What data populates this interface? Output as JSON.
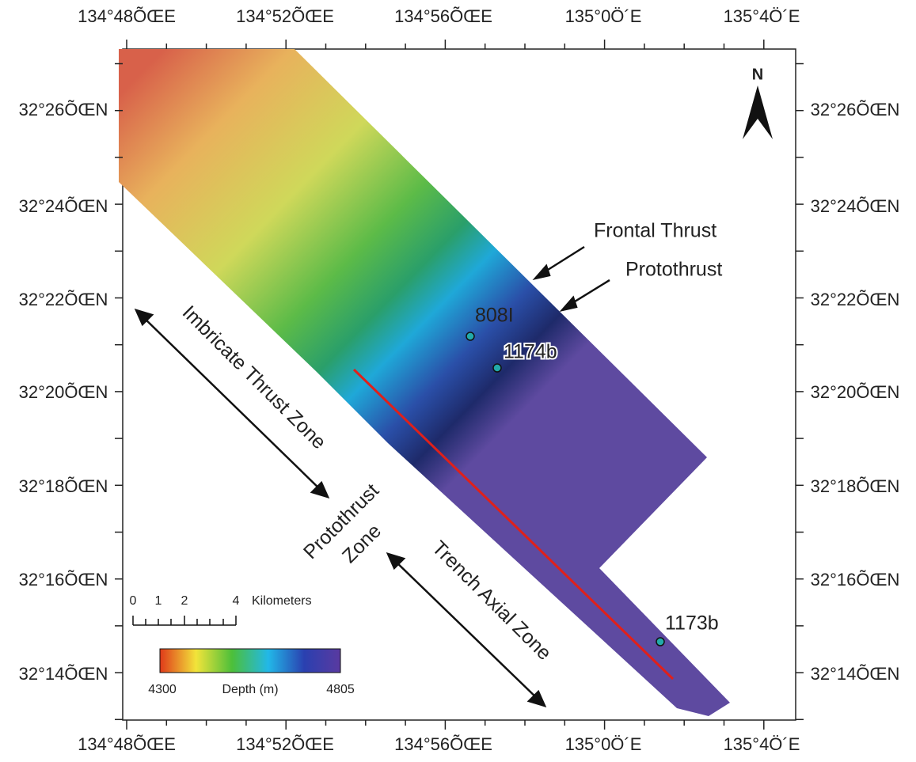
{
  "longitude_labels": [
    "134°48ÕŒE",
    "134°52ÕŒE",
    "134°56ÕŒE",
    "135°0Ö´E",
    "135°4Ö´E"
  ],
  "latitude_labels": [
    "32°26ÕŒN",
    "32°24ÕŒN",
    "32°22ÕŒN",
    "32°20ÕŒN",
    "32°18ÕŒN",
    "32°16ÕŒN",
    "32°14ÕŒN"
  ],
  "north": "N",
  "annotations": {
    "frontal_thrust": "Frontal Thrust",
    "protothrust": "Protothrust"
  },
  "sites": [
    "808I",
    "1174b",
    "1173b"
  ],
  "zones": {
    "imbricate": "Imbricate Thrust Zone",
    "protothrust_1": "Protothrust",
    "protothrust_2": "Zone",
    "trench": "Trench Axial Zone"
  },
  "scale_bar": {
    "ticks": [
      "0",
      "1",
      "2",
      "4"
    ],
    "unit": "Kilometers"
  },
  "legend": {
    "min": "4300",
    "title": "Depth (m)",
    "max": "4805"
  }
}
